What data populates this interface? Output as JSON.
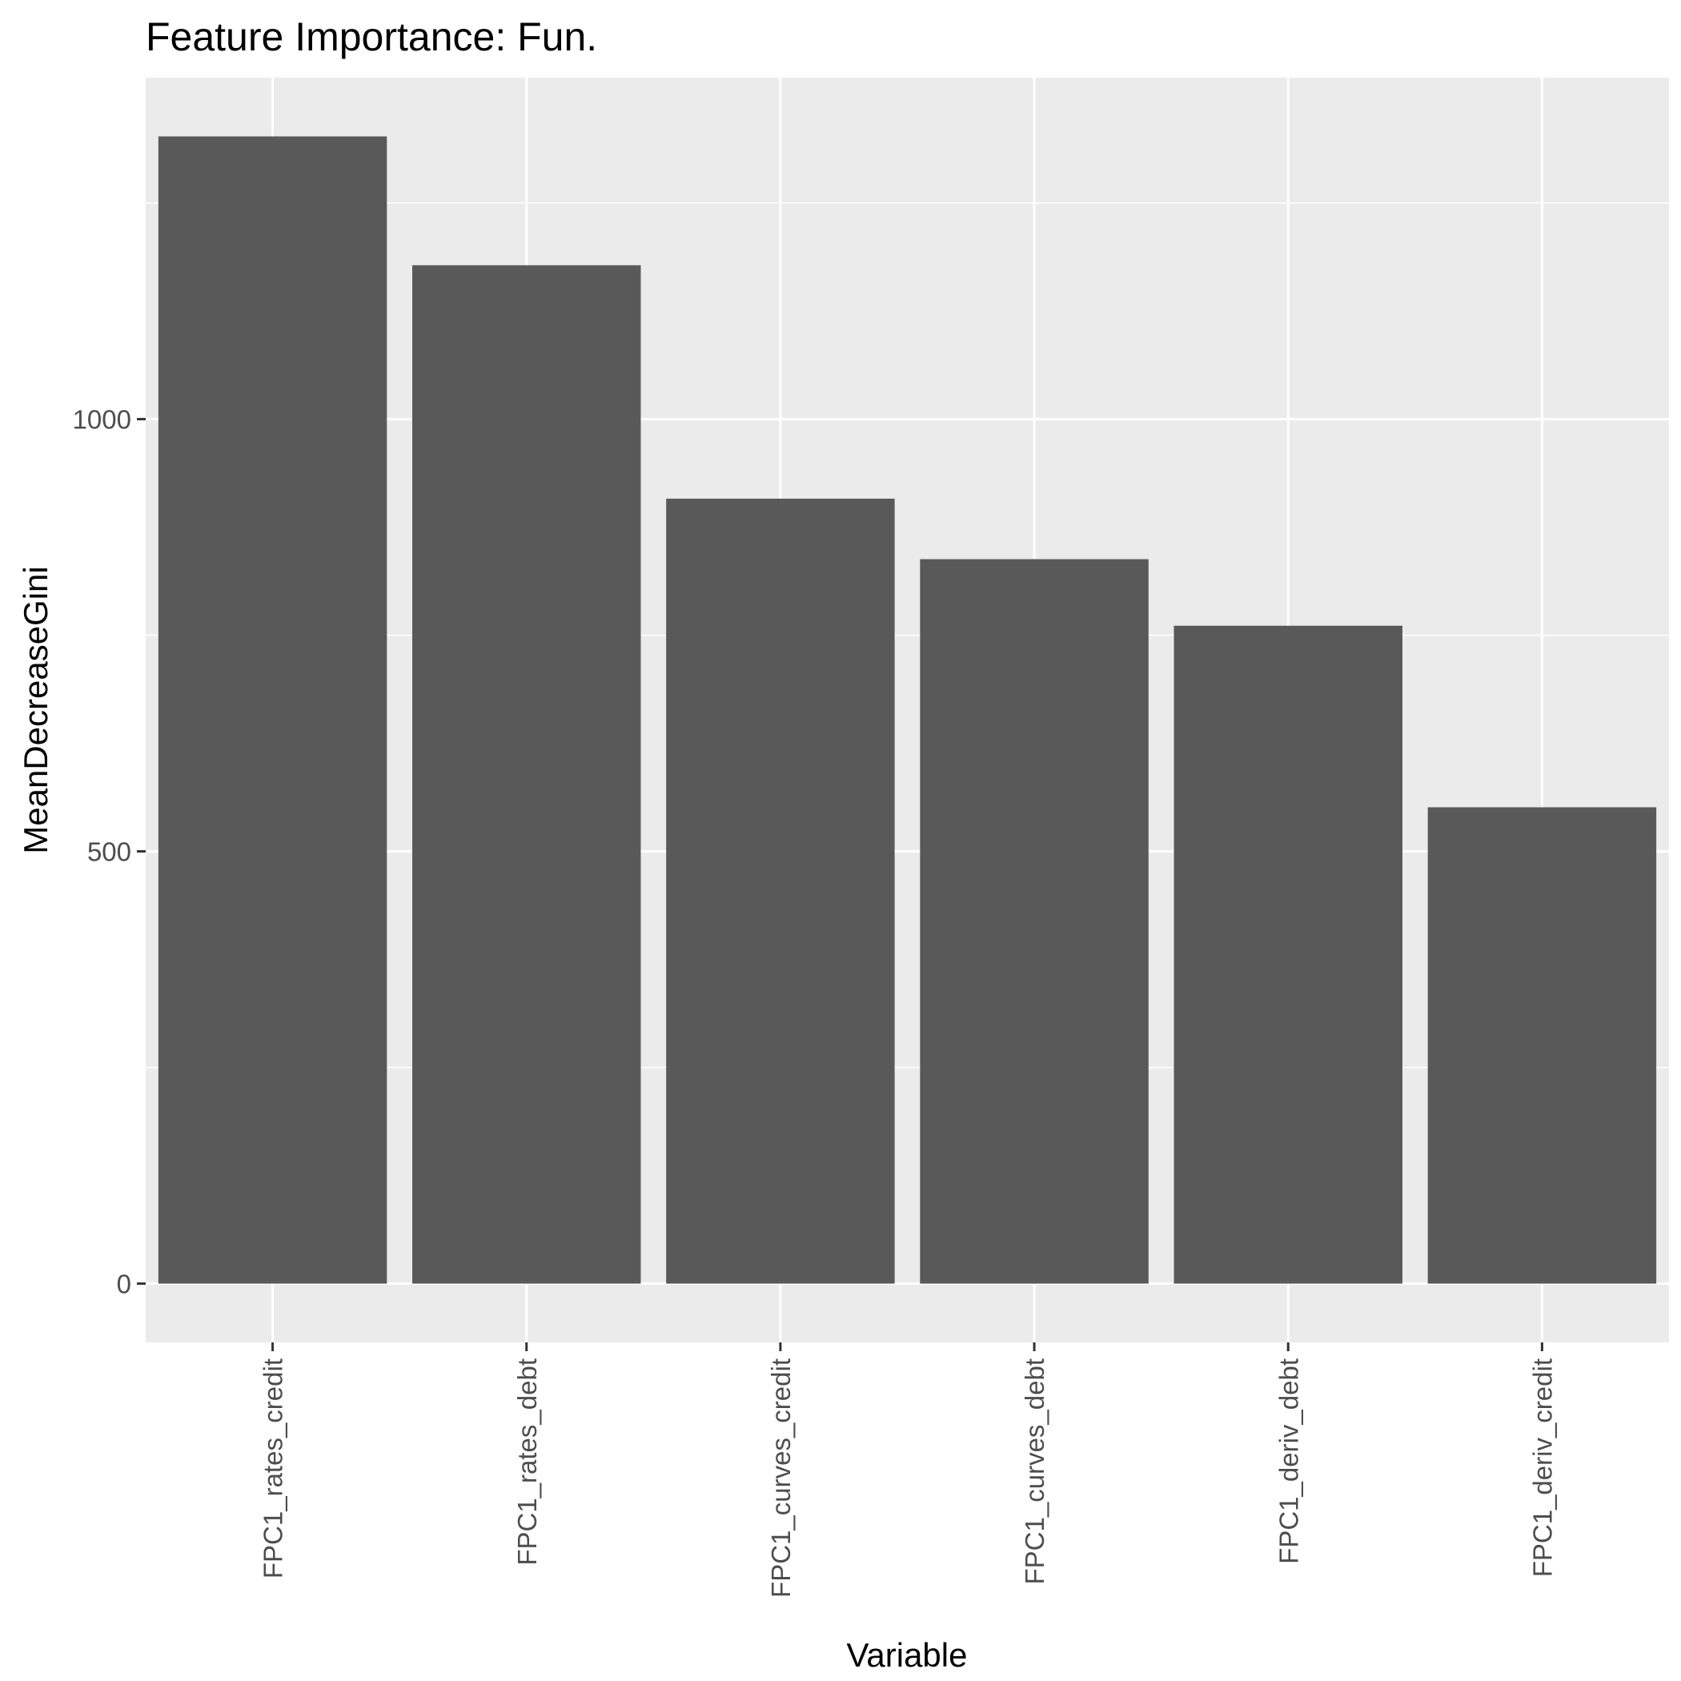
{
  "chart_data": {
    "type": "bar",
    "title": "Feature Importance: Fun.",
    "xlabel": "Variable",
    "ylabel": "MeanDecreaseGini",
    "categories": [
      "FPC1_rates_credit",
      "FPC1_rates_debt",
      "FPC1_curves_credit",
      "FPC1_curves_debt",
      "FPC1_deriv_debt",
      "FPC1_deriv_credit"
    ],
    "values": [
      1327,
      1178,
      908,
      838,
      761,
      551
    ],
    "ylim": [
      -68,
      1395
    ],
    "yticks": [
      0,
      500,
      1000
    ],
    "yticks_minor": [
      250,
      750,
      1250
    ],
    "ytick_labels": [
      "0",
      "500",
      "1000"
    ],
    "grid": true,
    "colors": {
      "panel": "#ebebeb",
      "grid": "#ffffff",
      "bar": "#595959",
      "tick": "#333333"
    }
  }
}
